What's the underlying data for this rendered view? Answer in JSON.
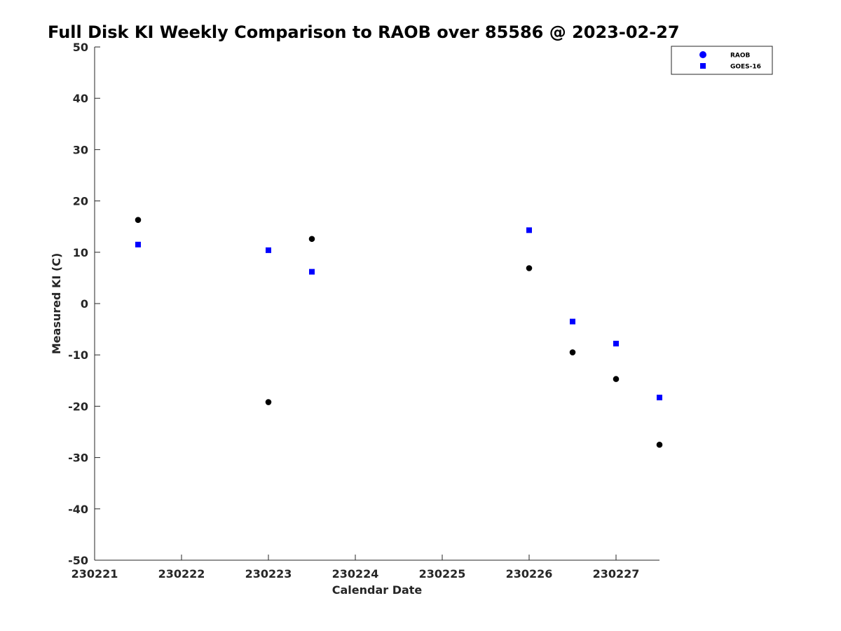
{
  "chart_data": {
    "type": "scatter",
    "title": "Full Disk KI Weekly Comparison to RAOB over 85586 @ 2023-02-27",
    "xlabel": "Calendar Date",
    "ylabel": "Measured KI (C)",
    "xlim": [
      "230221",
      "230227.5"
    ],
    "ylim": [
      -50,
      50
    ],
    "x_ticks": [
      "230221",
      "230222",
      "230223",
      "230224",
      "230225",
      "230226",
      "230227"
    ],
    "y_ticks": [
      -50,
      -40,
      -30,
      -20,
      -10,
      0,
      10,
      20,
      30,
      40,
      50
    ],
    "grid": false,
    "legend_position": "top-right",
    "series": [
      {
        "name": "RAOB",
        "marker": "circle",
        "color": "#000000",
        "legend_color": "#0000ff",
        "points": [
          {
            "x": "230221.5",
            "y": 16.3
          },
          {
            "x": "230223.0",
            "y": -19.2
          },
          {
            "x": "230223.5",
            "y": 12.6
          },
          {
            "x": "230226.0",
            "y": 6.9
          },
          {
            "x": "230226.5",
            "y": -9.5
          },
          {
            "x": "230227.0",
            "y": -14.7
          },
          {
            "x": "230227.5",
            "y": -27.5
          }
        ]
      },
      {
        "name": "GOES-16",
        "marker": "square",
        "color": "#0000ff",
        "legend_color": "#0000ff",
        "points": [
          {
            "x": "230221.5",
            "y": 11.5
          },
          {
            "x": "230223.0",
            "y": 10.4
          },
          {
            "x": "230223.5",
            "y": 6.2
          },
          {
            "x": "230226.0",
            "y": 14.3
          },
          {
            "x": "230226.5",
            "y": -3.5
          },
          {
            "x": "230227.0",
            "y": -7.8
          },
          {
            "x": "230227.5",
            "y": -18.3
          }
        ]
      }
    ]
  }
}
